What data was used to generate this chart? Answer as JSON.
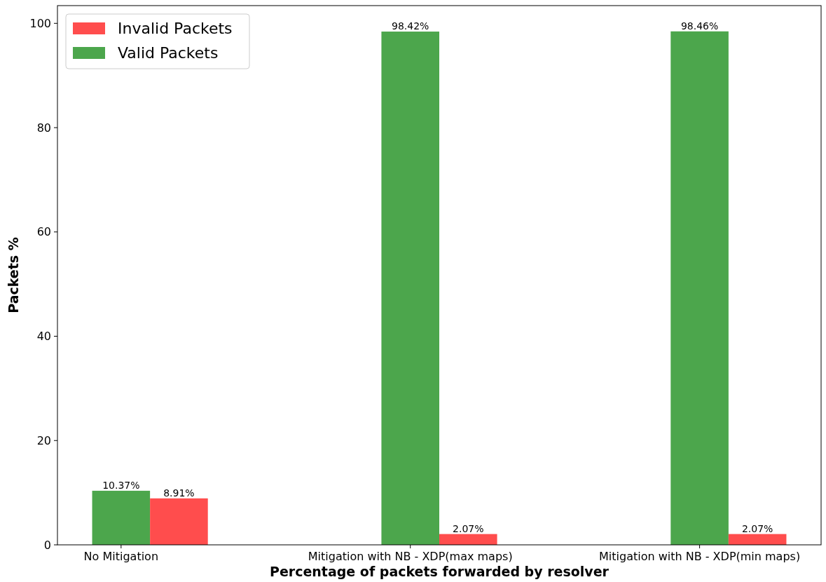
{
  "chart_data": {
    "type": "bar",
    "xlabel": "Percentage of packets forwarded by resolver",
    "ylabel": "Packets %",
    "categories": [
      "No Mitigation",
      "Mitigation with NB - XDP(max maps)",
      "Mitigation with NB - XDP(min maps)"
    ],
    "series": [
      {
        "name": "Valid Packets",
        "color": "#4ca64c",
        "values": [
          10.37,
          98.42,
          98.46
        ],
        "value_labels": [
          "10.37%",
          "98.42%",
          "98.46%"
        ]
      },
      {
        "name": "Invalid Packets",
        "color": "#ff4d4d",
        "values": [
          8.91,
          2.07,
          2.07
        ],
        "value_labels": [
          "8.91%",
          "2.07%",
          "2.07%"
        ]
      }
    ],
    "ylim": [
      0,
      103.4
    ],
    "yticks": [
      0,
      20,
      40,
      60,
      80,
      100
    ],
    "grid": false,
    "legend": "top left"
  }
}
